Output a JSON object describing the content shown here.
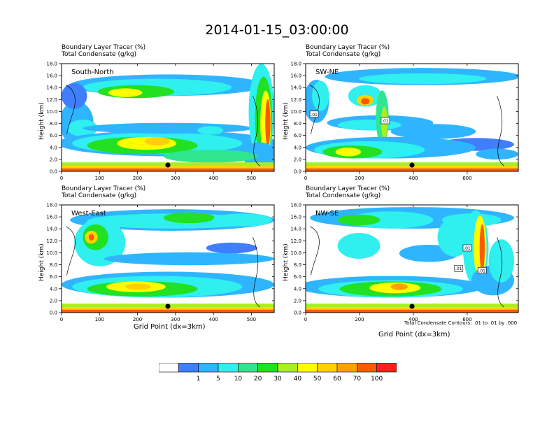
{
  "title": "2014-01-15_03:00:00",
  "colors": {
    "bins": [
      "#ffffff",
      "#3f7fff",
      "#2fb5ff",
      "#2fefef",
      "#2fe68f",
      "#22e022",
      "#aaee22",
      "#fefe00",
      "#fed200",
      "#fea000",
      "#fe5a00",
      "#ff1e1e"
    ],
    "frame": "#000000"
  },
  "legend": {
    "labels": [
      "1",
      "5",
      "10",
      "20",
      "30",
      "40",
      "50",
      "60",
      "70",
      "100"
    ]
  },
  "chart_data": [
    {
      "type": "heatmap",
      "name": "South-North",
      "title_line1": "Boundary Layer Tracer   (%)",
      "title_line2": "Total Condensate   (g/kg)",
      "ylabel": "Height (km)",
      "xlabel": "",
      "xlim": [
        0,
        560
      ],
      "ylim": [
        0,
        18
      ],
      "xticks": [
        "0",
        "100",
        "200",
        "300",
        "400",
        "500"
      ],
      "yticks": [
        "0.0",
        "2.0",
        "4.0",
        "6.0",
        "8.0",
        "10.0",
        "12.0",
        "14.0",
        "16.0",
        "18.0"
      ],
      "marker_x": 280,
      "contour_labels": []
    },
    {
      "type": "heatmap",
      "name": "SW-NE",
      "title_line1": "Boundary Layer Tracer   (%)",
      "title_line2": "Total Condensate   (g/kg)",
      "ylabel": "Height (km)",
      "xlabel": "",
      "xlim": [
        0,
        790
      ],
      "ylim": [
        0,
        18
      ],
      "xticks": [
        "0",
        "200",
        "400",
        "600"
      ],
      "yticks": [
        "0.0",
        "2.0",
        "4.0",
        "6.0",
        "8.0",
        "10.0",
        "12.0",
        "14.0",
        "16.0",
        "18.0"
      ],
      "marker_x": 395,
      "contour_labels": [
        ".01",
        ".01"
      ]
    },
    {
      "type": "heatmap",
      "name": "West-East",
      "title_line1": "Boundary Layer Tracer   (%)",
      "title_line2": "Total Condensate   (g/kg)",
      "ylabel": "Height (km)",
      "xlabel": "Grid Point (dx=3km)",
      "xlim": [
        0,
        560
      ],
      "ylim": [
        0,
        18
      ],
      "xticks": [
        "0",
        "100",
        "200",
        "300",
        "400",
        "500"
      ],
      "yticks": [
        "0.0",
        "2.0",
        "4.0",
        "6.0",
        "8.0",
        "10.0",
        "12.0",
        "14.0",
        "16.0",
        "18.0"
      ],
      "marker_x": 280,
      "contour_labels": []
    },
    {
      "type": "heatmap",
      "name": "NW-SE",
      "title_line1": "Boundary Layer Tracer   (%)",
      "title_line2": "Total Condensate   (g/kg)",
      "ylabel": "Height (km)",
      "xlabel": "Grid Point (dx=3km)",
      "xlim": [
        0,
        790
      ],
      "ylim": [
        0,
        18
      ],
      "xticks": [
        "0",
        "200",
        "400",
        "600"
      ],
      "yticks": [
        "0.0",
        "2.0",
        "4.0",
        "6.0",
        "8.0",
        "10.0",
        "12.0",
        "14.0",
        "16.0",
        "18.0"
      ],
      "marker_x": 395,
      "contour_labels": [
        ".01",
        ".01",
        ".01"
      ],
      "contour_note": "Total Condensate Contours: .01 to .01 by .000"
    }
  ]
}
